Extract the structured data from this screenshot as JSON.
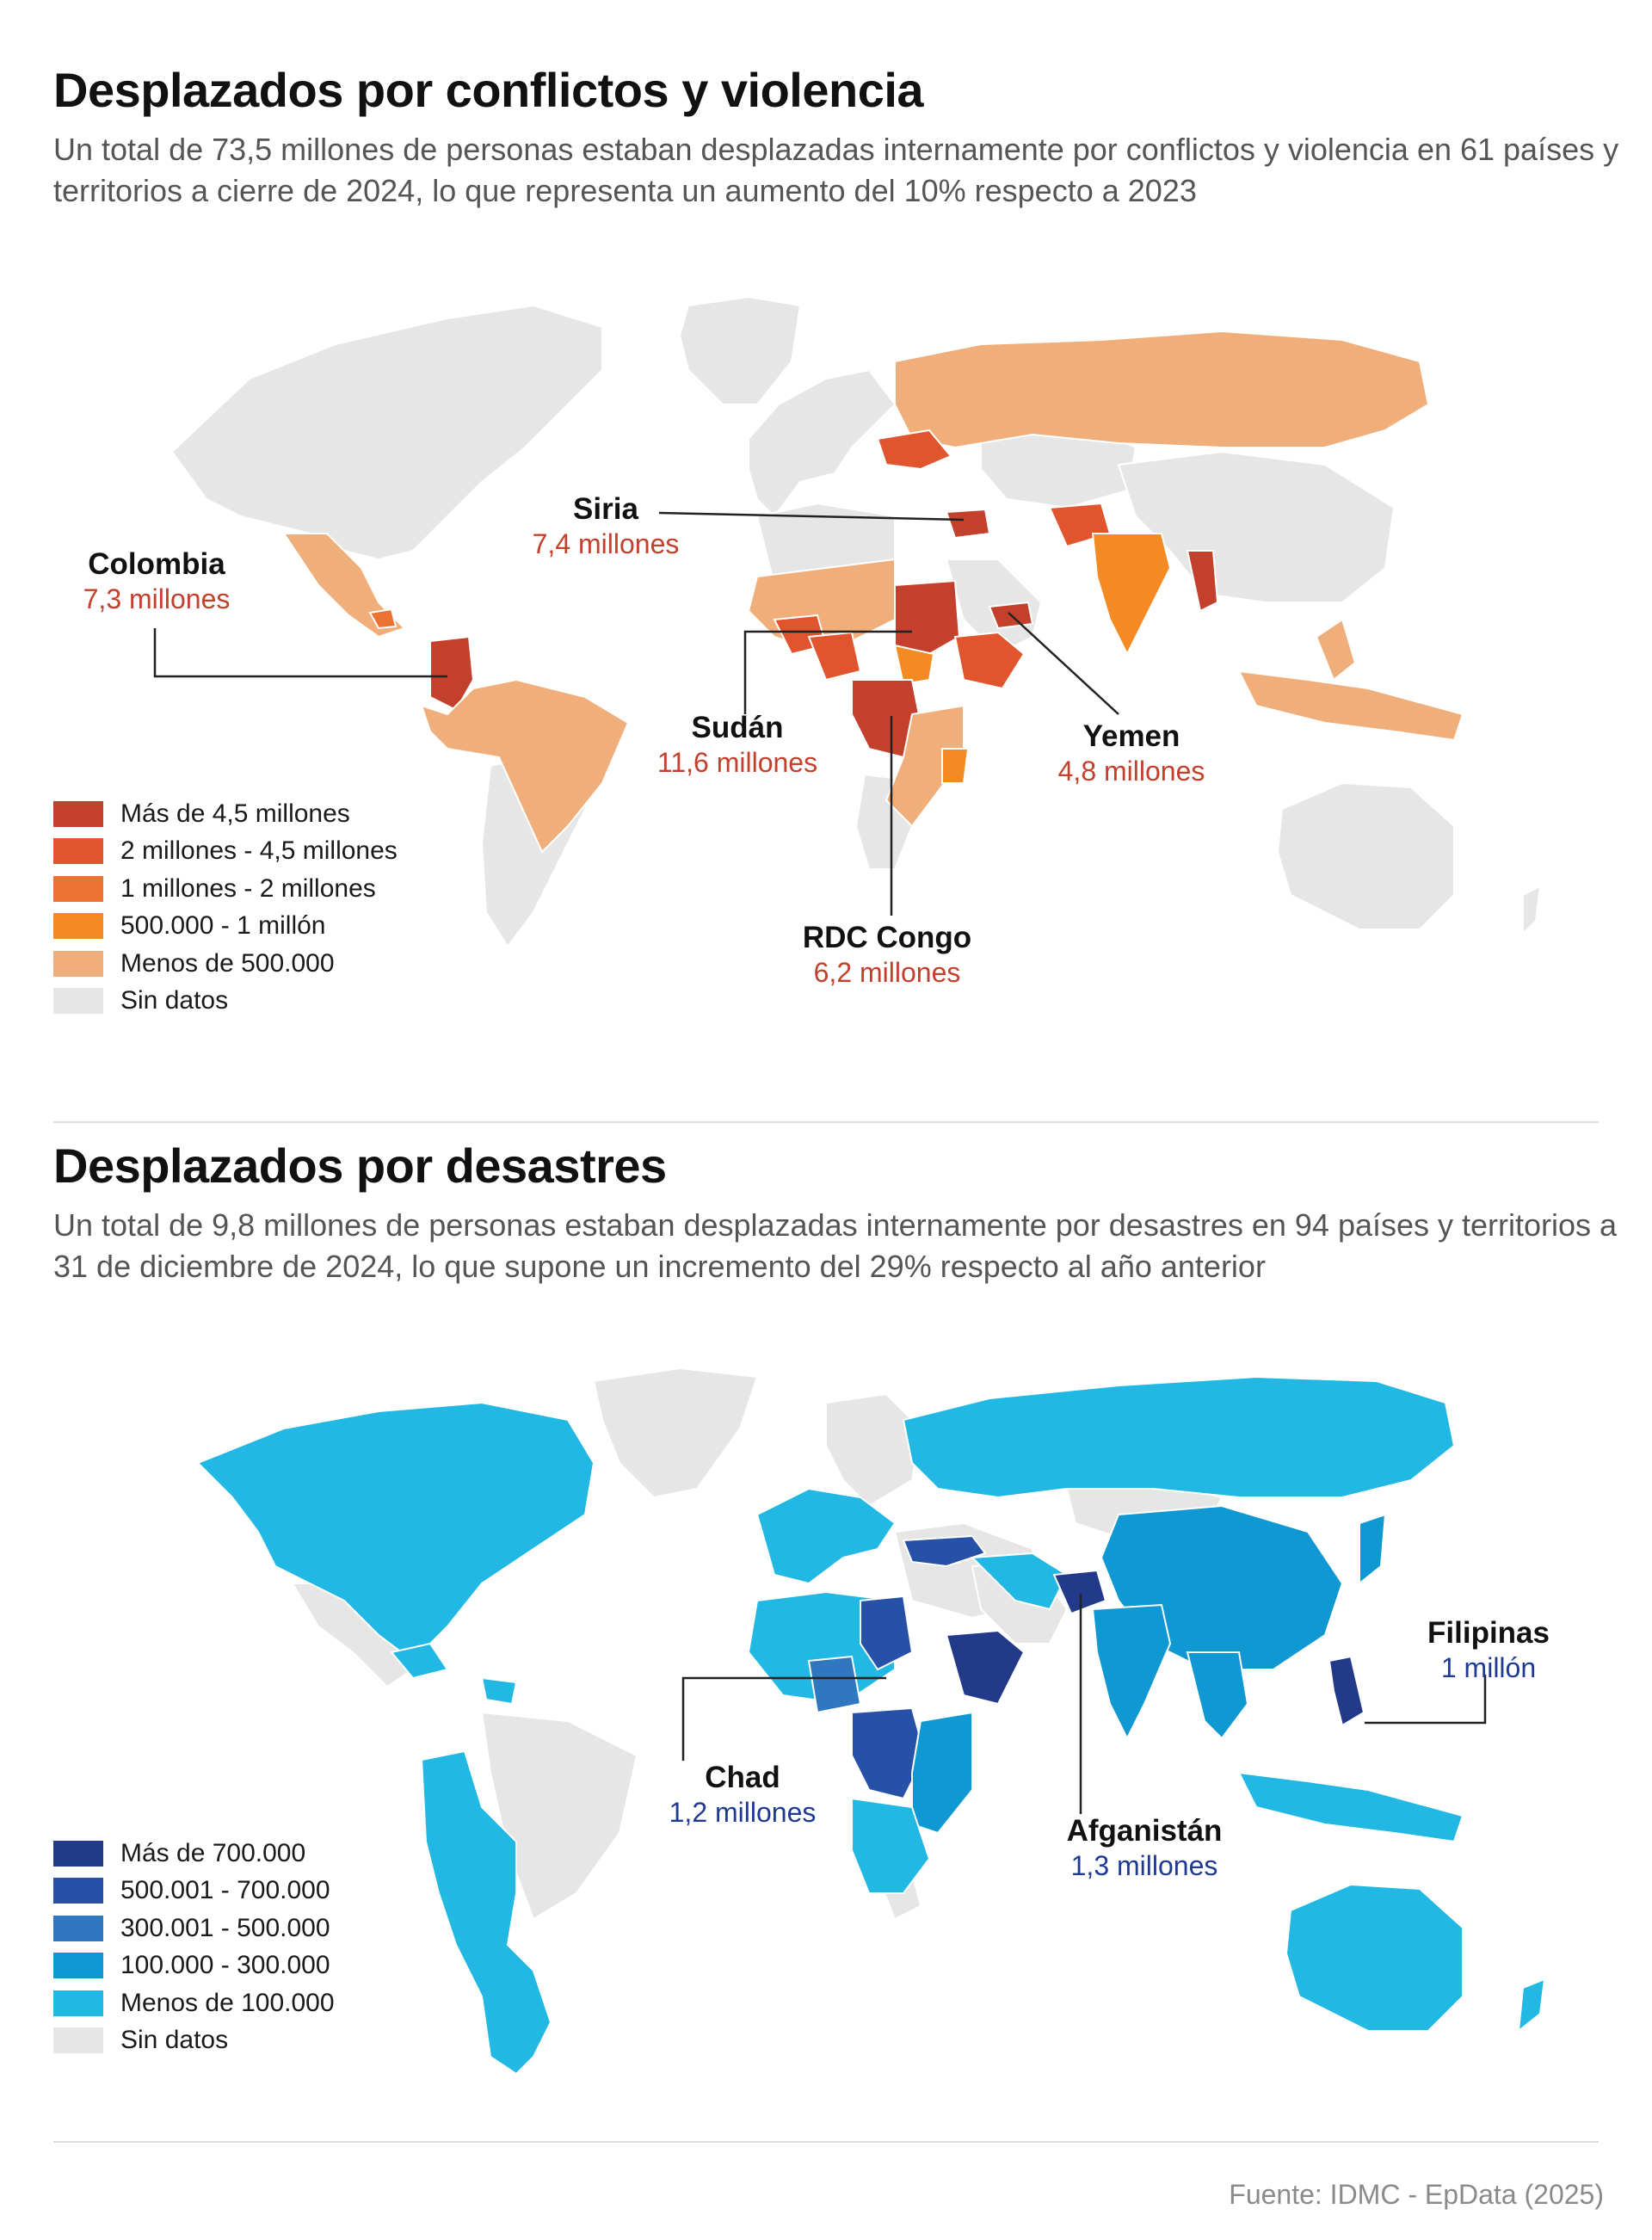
{
  "colors": {
    "no_data": "#e6e6e6",
    "conflict": [
      "#c3402d",
      "#e0552e",
      "#ec7233",
      "#f48a24",
      "#f0ae7a"
    ],
    "disaster": [
      "#233a8a",
      "#2651a6",
      "#2f78bf",
      "#0f98d2",
      "#21b8e3"
    ],
    "line": "#222222"
  },
  "conflict": {
    "title": "Desplazados por conflictos y violencia",
    "subtitle": "Un total de 73,5 millones de personas estaban desplazadas internamente por conflictos y violencia en 61 países y territorios a cierre de 2024, lo que representa un aumento del 10% respecto a 2023",
    "legend": [
      {
        "label": "Más de 4,5 millones",
        "color": "#c3402d"
      },
      {
        "label": "2 millones - 4,5 millones",
        "color": "#e0552e"
      },
      {
        "label": "1 millones - 2 millones",
        "color": "#ec7233"
      },
      {
        "label": "500.000 - 1 millón",
        "color": "#f48a24"
      },
      {
        "label": "Menos de 500.000",
        "color": "#f0ae7a"
      },
      {
        "label": "Sin datos",
        "color": "#e6e6e6"
      }
    ],
    "callouts": [
      {
        "name": "Colombia",
        "value": "7,3 millones"
      },
      {
        "name": "Siria",
        "value": "7,4 millones"
      },
      {
        "name": "Sudán",
        "value": "11,6 millones"
      },
      {
        "name": "Yemen",
        "value": "4,8 millones"
      },
      {
        "name": "RDC Congo",
        "value": "6,2 millones"
      }
    ]
  },
  "disaster": {
    "title": "Desplazados por desastres",
    "subtitle": "Un total de 9,8 millones de personas estaban desplazadas internamente por desastres en 94 países y territorios a 31 de diciembre de 2024, lo que supone un incremento del 29% respecto al año anterior",
    "legend": [
      {
        "label": "Más de 700.000",
        "color": "#233a8a"
      },
      {
        "label": "500.001 - 700.000",
        "color": "#2651a6"
      },
      {
        "label": "300.001 - 500.000",
        "color": "#2f78bf"
      },
      {
        "label": "100.000 - 300.000",
        "color": "#0f98d2"
      },
      {
        "label": "Menos de 100.000",
        "color": "#21b8e3"
      },
      {
        "label": "Sin datos",
        "color": "#e6e6e6"
      }
    ],
    "callouts": [
      {
        "name": "Filipinas",
        "value": "1 millón"
      },
      {
        "name": "Chad",
        "value": "1,2 millones"
      },
      {
        "name": "Afganistán",
        "value": "1,3 millones"
      }
    ]
  },
  "source": "Fuente: IDMC - EpData (2025)"
}
